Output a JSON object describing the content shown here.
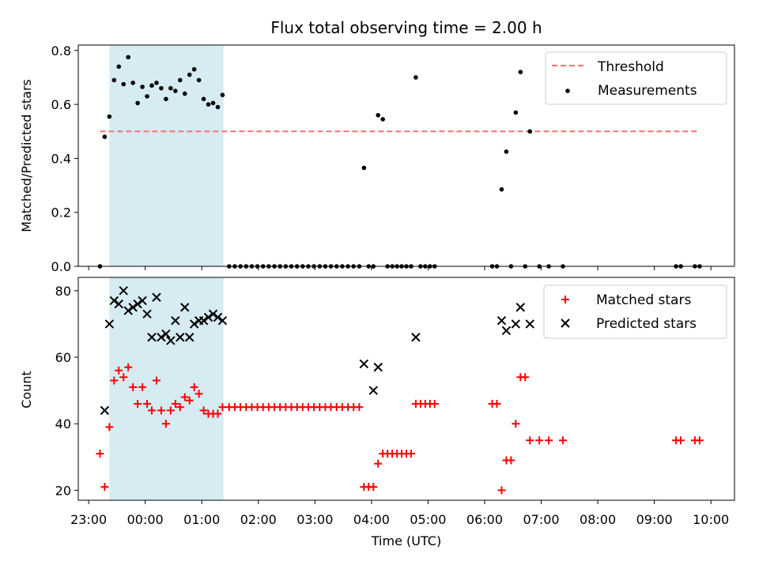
{
  "chart_data": [
    {
      "type": "scatter",
      "title": "Flux total observing time = 2.00 h",
      "xlabel": "",
      "ylabel": "Matched/Predicted stars",
      "xlim": [
        "22:49",
        "10:25"
      ],
      "ylim": [
        0,
        0.82
      ],
      "yticks": [
        0.0,
        0.2,
        0.4,
        0.6,
        0.8
      ],
      "highlight_span": {
        "start": "23:22",
        "end": "01:23",
        "color": "#add8e6"
      },
      "legend": {
        "placement": "top-right",
        "entries": [
          "Threshold",
          "Measurements"
        ]
      },
      "series": [
        {
          "name": "Threshold",
          "style": "dashed-line",
          "color": "#ff7070",
          "x": [
            "23:12",
            "09:46"
          ],
          "y": [
            0.5,
            0.5
          ]
        },
        {
          "name": "Measurements",
          "style": "dot",
          "color": "#000000",
          "x": [
            "23:12",
            "23:17",
            "23:22",
            "23:27",
            "23:32",
            "23:37",
            "23:42",
            "23:47",
            "23:52",
            "23:57",
            "24:02",
            "24:07",
            "24:12",
            "24:17",
            "24:22",
            "24:27",
            "24:32",
            "24:37",
            "24:42",
            "24:47",
            "24:52",
            "24:57",
            "25:02",
            "25:07",
            "25:12",
            "25:17",
            "25:22",
            "25:29",
            "25:35",
            "25:41",
            "25:47",
            "25:53",
            "25:59",
            "26:05",
            "26:11",
            "26:17",
            "26:23",
            "26:29",
            "26:35",
            "26:41",
            "26:47",
            "26:53",
            "26:59",
            "27:05",
            "27:11",
            "27:17",
            "27:23",
            "27:29",
            "27:35",
            "27:41",
            "27:47",
            "27:52",
            "27:57",
            "28:02",
            "28:07",
            "28:12",
            "28:17",
            "28:22",
            "28:27",
            "28:32",
            "28:37",
            "28:42",
            "28:47",
            "28:52",
            "28:57",
            "29:02",
            "29:07",
            "30:08",
            "30:13",
            "30:18",
            "30:23",
            "30:28",
            "30:33",
            "30:38",
            "30:43",
            "30:48",
            "30:58",
            "31:08",
            "31:23",
            "33:23",
            "33:28",
            "33:43",
            "33:48"
          ],
          "y": [
            0,
            0.48,
            0.555,
            0.69,
            0.74,
            0.675,
            0.775,
            0.68,
            0.605,
            0.665,
            0.63,
            0.67,
            0.68,
            0.66,
            0.62,
            0.66,
            0.65,
            0.69,
            0.64,
            0.71,
            0.73,
            0.69,
            0.62,
            0.6,
            0.605,
            0.59,
            0.635,
            0,
            0,
            0,
            0,
            0,
            0,
            0,
            0,
            0,
            0,
            0,
            0,
            0,
            0,
            0,
            0,
            0,
            0,
            0,
            0,
            0,
            0,
            0,
            0,
            0.365,
            0,
            0,
            0.56,
            0.545,
            0,
            0,
            0,
            0,
            0,
            0,
            0.7,
            0,
            0,
            0,
            0,
            0,
            0,
            0.285,
            0.425,
            0,
            0.57,
            0.72,
            0,
            0.5,
            0,
            0,
            0,
            0,
            0,
            0,
            0
          ]
        }
      ]
    },
    {
      "type": "scatter",
      "title": "",
      "xlabel": "Time (UTC)",
      "ylabel": "Count",
      "xlim": [
        "22:49",
        "10:25"
      ],
      "ylim": [
        17,
        84
      ],
      "yticks": [
        20,
        40,
        60,
        80
      ],
      "xticks": [
        "23:00",
        "00:00",
        "01:00",
        "02:00",
        "03:00",
        "04:00",
        "05:00",
        "06:00",
        "07:00",
        "08:00",
        "09:00",
        "10:00"
      ],
      "highlight_span": {
        "start": "23:22",
        "end": "01:23",
        "color": "#add8e6"
      },
      "legend": {
        "placement": "top-right",
        "entries": [
          "Matched stars",
          "Predicted stars"
        ]
      },
      "series": [
        {
          "name": "Matched stars",
          "style": "plus",
          "color": "#ff0000",
          "x": [
            "23:12",
            "23:17",
            "23:22",
            "23:27",
            "23:32",
            "23:37",
            "23:42",
            "23:47",
            "23:52",
            "23:57",
            "24:02",
            "24:07",
            "24:12",
            "24:17",
            "24:22",
            "24:27",
            "24:32",
            "24:37",
            "24:42",
            "24:47",
            "24:52",
            "24:57",
            "25:02",
            "25:07",
            "25:12",
            "25:17",
            "25:22",
            "25:29",
            "25:35",
            "25:41",
            "25:47",
            "25:53",
            "25:59",
            "26:05",
            "26:11",
            "26:17",
            "26:23",
            "26:29",
            "26:35",
            "26:41",
            "26:47",
            "26:53",
            "26:59",
            "27:05",
            "27:11",
            "27:17",
            "27:23",
            "27:29",
            "27:35",
            "27:41",
            "27:47",
            "27:52",
            "27:57",
            "28:02",
            "28:07",
            "28:12",
            "28:17",
            "28:22",
            "28:27",
            "28:32",
            "28:37",
            "28:42",
            "28:47",
            "28:52",
            "28:57",
            "29:02",
            "29:07",
            "30:08",
            "30:13",
            "30:18",
            "30:23",
            "30:28",
            "30:33",
            "30:38",
            "30:43",
            "30:48",
            "30:58",
            "31:08",
            "31:23",
            "33:23",
            "33:28",
            "33:43",
            "33:48"
          ],
          "y": [
            31,
            21,
            39,
            53,
            56,
            54,
            57,
            51,
            46,
            51,
            46,
            44,
            53,
            44,
            40,
            44,
            46,
            45,
            48,
            47,
            51,
            49,
            44,
            43,
            43,
            43,
            45,
            45,
            45,
            45,
            45,
            45,
            45,
            45,
            45,
            45,
            45,
            45,
            45,
            45,
            45,
            45,
            45,
            45,
            45,
            45,
            45,
            45,
            45,
            45,
            45,
            21,
            21,
            21,
            28,
            31,
            31,
            31,
            31,
            31,
            31,
            31,
            46,
            46,
            46,
            46,
            46,
            46,
            46,
            20,
            29,
            29,
            40,
            54,
            54,
            35,
            35,
            35,
            35,
            35,
            35,
            35,
            35
          ]
        },
        {
          "name": "Predicted stars",
          "style": "x",
          "color": "#000000",
          "x": [
            "23:17",
            "23:22",
            "23:27",
            "23:32",
            "23:37",
            "23:42",
            "23:47",
            "23:52",
            "23:57",
            "24:02",
            "24:07",
            "24:12",
            "24:17",
            "24:22",
            "24:27",
            "24:32",
            "24:37",
            "24:42",
            "24:47",
            "24:52",
            "24:57",
            "25:02",
            "25:07",
            "25:12",
            "25:17",
            "25:22",
            "27:52",
            "28:02",
            "28:07",
            "28:47",
            "30:18",
            "30:23",
            "30:33",
            "30:38",
            "30:48"
          ],
          "y": [
            44,
            70,
            77,
            76,
            80,
            74,
            75,
            76,
            77,
            73,
            66,
            78,
            66,
            67,
            65,
            71,
            66,
            75,
            66,
            70,
            71,
            71,
            72,
            73,
            72,
            71,
            58,
            50,
            57,
            66,
            71,
            68,
            70,
            75,
            70
          ]
        }
      ]
    }
  ]
}
